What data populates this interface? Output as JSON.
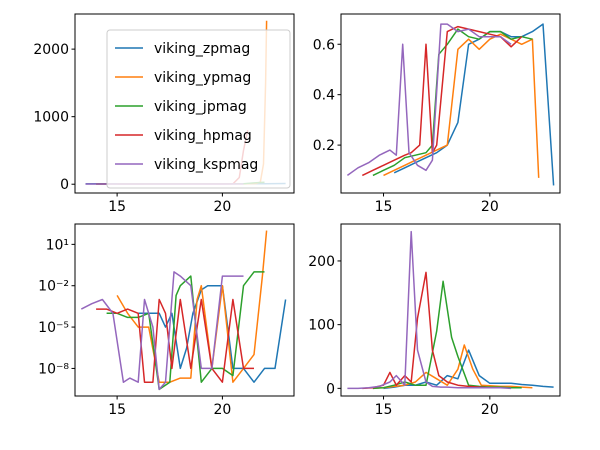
{
  "chart_data": [
    {
      "type": "line",
      "panel": "top-left",
      "xlim": [
        13.0,
        23.4
      ],
      "ylim": [
        -130,
        2520
      ],
      "xticks": [
        15,
        20
      ],
      "yticks": [
        0,
        1000,
        2000
      ],
      "legend_position": "top-right",
      "series": [
        {
          "name": "viking_zpmag",
          "color": "#1f77b4",
          "x": [
            13.5,
            15,
            17,
            19,
            21,
            22,
            23
          ],
          "y": [
            5,
            6,
            6,
            6,
            7,
            7,
            10
          ]
        },
        {
          "name": "viking_ypmag",
          "color": "#ff7f0e",
          "x": [
            15,
            17,
            19,
            21,
            21.6,
            21.8,
            21.95,
            22.05,
            22.1
          ],
          "y": [
            4,
            4,
            4,
            5,
            10,
            30,
            300,
            1500,
            2420
          ]
        },
        {
          "name": "viking_jpmag",
          "color": "#2ca02c",
          "x": [
            14,
            16,
            18,
            20,
            21,
            21.5,
            22
          ],
          "y": [
            3,
            3,
            4,
            4,
            8,
            20,
            30
          ]
        },
        {
          "name": "viking_hpmag",
          "color": "#d62728",
          "x": [
            14,
            16,
            18,
            20,
            20.5,
            20.8,
            21.0,
            21.2
          ],
          "y": [
            3,
            3,
            3,
            3,
            5,
            100,
            500,
            800
          ]
        },
        {
          "name": "viking_kspmag",
          "color": "#9467bd",
          "x": [
            13.5,
            15,
            17,
            19,
            20,
            21
          ],
          "y": [
            3,
            3,
            3,
            3,
            3,
            3
          ]
        }
      ]
    },
    {
      "type": "line",
      "panel": "top-right",
      "xlim": [
        13.0,
        23.3
      ],
      "ylim": [
        0.01,
        0.72
      ],
      "xticks": [
        15,
        20
      ],
      "yticks": [
        0.2,
        0.4,
        0.6
      ],
      "series": [
        {
          "name": "viking_zpmag",
          "color": "#1f77b4",
          "x": [
            15.5,
            16,
            16.5,
            17,
            17.5,
            18,
            18.5,
            19,
            19.5,
            20,
            20.5,
            21,
            21.5,
            22,
            22.5,
            23
          ],
          "y": [
            0.09,
            0.11,
            0.13,
            0.15,
            0.17,
            0.2,
            0.29,
            0.6,
            0.62,
            0.65,
            0.65,
            0.63,
            0.63,
            0.65,
            0.68,
            0.04
          ]
        },
        {
          "name": "viking_ypmag",
          "color": "#ff7f0e",
          "x": [
            15,
            15.5,
            16,
            16.5,
            17,
            17.5,
            18,
            18.5,
            19,
            19.5,
            20,
            20.5,
            21,
            21.5,
            22,
            22.3
          ],
          "y": [
            0.08,
            0.1,
            0.12,
            0.14,
            0.16,
            0.18,
            0.2,
            0.58,
            0.62,
            0.58,
            0.62,
            0.64,
            0.62,
            0.6,
            0.62,
            0.07
          ]
        },
        {
          "name": "viking_jpmag",
          "color": "#2ca02c",
          "x": [
            14.5,
            15,
            15.5,
            16,
            16.5,
            17,
            17.3,
            17.6,
            18,
            18.5,
            19,
            19.5,
            20,
            20.5,
            21,
            21.5,
            22
          ],
          "y": [
            0.08,
            0.1,
            0.12,
            0.15,
            0.16,
            0.17,
            0.2,
            0.56,
            0.6,
            0.66,
            0.63,
            0.62,
            0.65,
            0.65,
            0.62,
            0.63,
            0.62
          ]
        },
        {
          "name": "viking_hpmag",
          "color": "#d62728",
          "x": [
            14,
            14.5,
            15,
            15.5,
            16,
            16.3,
            16.7,
            17,
            17.3,
            17.5,
            18,
            18.5,
            19,
            19.5,
            20,
            20.5,
            21,
            21.5
          ],
          "y": [
            0.08,
            0.1,
            0.12,
            0.14,
            0.16,
            0.17,
            0.2,
            0.6,
            0.17,
            0.2,
            0.65,
            0.67,
            0.66,
            0.65,
            0.64,
            0.63,
            0.59,
            0.63
          ]
        },
        {
          "name": "viking_kspmag",
          "color": "#9467bd",
          "x": [
            13.3,
            13.8,
            14.3,
            14.8,
            15.3,
            15.6,
            15.9,
            16.2,
            16.6,
            17,
            17.3,
            17.7,
            18,
            18.5,
            19,
            19.5,
            20,
            20.5,
            21
          ],
          "y": [
            0.08,
            0.11,
            0.13,
            0.16,
            0.18,
            0.16,
            0.6,
            0.17,
            0.12,
            0.1,
            0.14,
            0.68,
            0.68,
            0.65,
            0.66,
            0.63,
            0.63,
            0.63,
            0.6
          ]
        }
      ]
    },
    {
      "type": "line",
      "panel": "bottom-left",
      "yscale": "log",
      "xlim": [
        13.0,
        23.4
      ],
      "ylim": [
        1e-10,
        300
      ],
      "xticks": [
        15,
        20
      ],
      "yticks": [
        1e-08,
        1e-05,
        0.01,
        10
      ],
      "series": [
        {
          "name": "viking_zpmag",
          "color": "#1f77b4",
          "x": [
            16,
            17,
            17.3,
            17.6,
            18,
            18.3,
            18.6,
            19,
            19.3,
            19.6,
            20,
            20.5,
            21,
            21.5,
            22,
            22.5,
            23
          ],
          "y": [
            0.0001,
            0.0001,
            1e-05,
            0.0001,
            1e-08,
            3e-07,
            0.0001,
            0.005,
            0.01,
            0.01,
            0.01,
            1e-08,
            1e-08,
            1e-09,
            1e-08,
            1e-08,
            0.001
          ]
        },
        {
          "name": "viking_ypmag",
          "color": "#ff7f0e",
          "x": [
            15,
            15.5,
            16,
            16.5,
            17,
            17.5,
            18,
            18.5,
            18.8,
            19,
            19.5,
            20,
            20.5,
            21,
            21.5,
            21.9,
            22.1
          ],
          "y": [
            0.002,
            0.0001,
            1e-05,
            1e-05,
            1e-09,
            1e-09,
            2e-09,
            2e-09,
            0.001,
            0.01,
            1e-08,
            0.01,
            1e-09,
            1e-08,
            1e-07,
            0.05,
            100
          ]
        },
        {
          "name": "viking_jpmag",
          "color": "#2ca02c",
          "x": [
            14.5,
            15,
            15.5,
            16,
            16.5,
            17,
            17.5,
            17.8,
            18,
            18.5,
            19,
            19.5,
            20,
            20.5,
            21,
            21.5,
            22
          ],
          "y": [
            0.0001,
            0.0001,
            5e-05,
            5e-05,
            0.0001,
            3e-10,
            1e-09,
            0.002,
            0.01,
            0.05,
            1e-09,
            1e-08,
            1e-08,
            3e-09,
            0.01,
            0.1,
            0.1
          ]
        },
        {
          "name": "viking_hpmag",
          "color": "#d62728",
          "x": [
            14,
            14.5,
            15,
            15.5,
            16,
            16.3,
            16.7,
            17,
            17.3,
            17.6,
            18,
            18.5,
            19,
            19.5,
            20,
            20.5,
            21,
            21.5
          ],
          "y": [
            0.0002,
            0.0002,
            0.0001,
            0.0002,
            0.0001,
            1e-09,
            1e-09,
            0.001,
            0.0001,
            1e-08,
            0.001,
            1e-08,
            0.001,
            1e-08,
            1e-09,
            0.001,
            1e-08,
            1e-08
          ]
        },
        {
          "name": "viking_kspmag",
          "color": "#9467bd",
          "x": [
            13.3,
            13.8,
            14.3,
            14.8,
            15.3,
            15.6,
            16,
            16.3,
            16.7,
            17,
            17.3,
            17.7,
            18,
            18.5,
            19,
            19.5,
            20,
            20.5,
            21
          ],
          "y": [
            0.0002,
            0.0005,
            0.001,
            0.0001,
            1e-09,
            2e-09,
            1e-09,
            0.001,
            1e-05,
            3e-10,
            1e-09,
            0.1,
            0.05,
            0.01,
            1e-08,
            1e-08,
            0.05,
            0.05,
            0.05
          ]
        }
      ]
    },
    {
      "type": "line",
      "panel": "bottom-right",
      "xlim": [
        13.0,
        23.3
      ],
      "ylim": [
        -12,
        258
      ],
      "xticks": [
        15,
        20
      ],
      "yticks": [
        0,
        100,
        200
      ],
      "series": [
        {
          "name": "viking_zpmag",
          "color": "#1f77b4",
          "x": [
            15,
            15.5,
            16,
            16.5,
            17,
            17.5,
            18,
            18.5,
            19,
            19.5,
            20,
            20.5,
            21,
            21.5,
            22,
            22.5,
            23
          ],
          "y": [
            0,
            2,
            5,
            5,
            10,
            5,
            20,
            15,
            60,
            20,
            8,
            8,
            8,
            6,
            5,
            3,
            2
          ]
        },
        {
          "name": "viking_ypmag",
          "color": "#ff7f0e",
          "x": [
            14.5,
            15,
            15.5,
            16,
            16.5,
            17,
            17.5,
            18,
            18.5,
            18.8,
            19.2,
            19.6,
            20,
            20.5,
            21,
            21.5,
            22
          ],
          "y": [
            0,
            1,
            3,
            5,
            10,
            25,
            15,
            5,
            30,
            68,
            30,
            5,
            4,
            3,
            3,
            2,
            1
          ]
        },
        {
          "name": "viking_jpmag",
          "color": "#2ca02c",
          "x": [
            14.5,
            15,
            15.5,
            16,
            16.5,
            17,
            17.5,
            17.8,
            18.2,
            18.5,
            19,
            19.5,
            20,
            20.5,
            21,
            21.5
          ],
          "y": [
            0,
            1,
            5,
            10,
            5,
            5,
            90,
            168,
            80,
            50,
            5,
            3,
            2,
            2,
            1,
            1
          ]
        },
        {
          "name": "viking_hpmag",
          "color": "#d62728",
          "x": [
            14,
            14.5,
            15,
            15.3,
            15.6,
            16,
            16.3,
            16.6,
            17,
            17.3,
            17.6,
            18,
            18.5,
            19,
            19.5,
            20
          ],
          "y": [
            0,
            1,
            5,
            25,
            5,
            20,
            10,
            110,
            182,
            60,
            20,
            10,
            5,
            3,
            2,
            1
          ]
        },
        {
          "name": "viking_kspmag",
          "color": "#9467bd",
          "x": [
            13.3,
            13.8,
            14.3,
            14.8,
            15.3,
            15.6,
            16,
            16.3,
            16.6,
            17,
            17.3,
            17.7,
            18,
            18.5,
            19,
            19.5,
            20,
            20.5,
            21
          ],
          "y": [
            0,
            0,
            1,
            3,
            10,
            20,
            5,
            246,
            60,
            10,
            3,
            2,
            2,
            1,
            1,
            1,
            1,
            1,
            0
          ]
        }
      ]
    }
  ]
}
